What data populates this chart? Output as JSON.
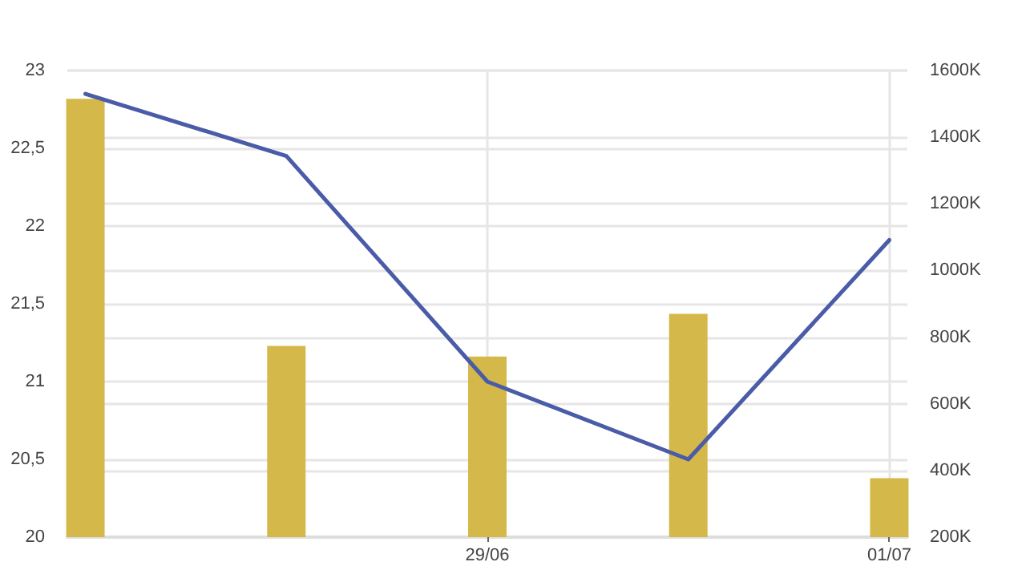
{
  "chart_data": {
    "type": "bar",
    "categories": [
      null,
      null,
      "29/06",
      null,
      "01/07"
    ],
    "series": [
      {
        "axis": "y2",
        "color": "#d4b94a",
        "values": [
          1515,
          774,
          742,
          870,
          377
        ]
      },
      {
        "type": "line",
        "axis": "y",
        "color": "#4a5ba8",
        "values": [
          22.85,
          22.45,
          21.0,
          20.5,
          21.91
        ]
      }
    ],
    "ylim": [
      20,
      23
    ],
    "yticks": [
      20,
      {
        "value": 20.5,
        "label": "20,5"
      },
      21,
      {
        "value": 21.5,
        "label": "21,5"
      },
      22,
      {
        "value": 22.5,
        "label": "22,5"
      },
      23
    ],
    "y2lim": [
      200,
      1600
    ],
    "y2ticks": [
      {
        "value": 200,
        "label": "200K"
      },
      {
        "value": 400,
        "label": "400K"
      },
      {
        "value": 600,
        "label": "600K"
      },
      {
        "value": 800,
        "label": "800K"
      },
      {
        "value": 1000,
        "label": "1000K"
      },
      {
        "value": 1200,
        "label": "1200K"
      },
      {
        "value": 1400,
        "label": "1400K"
      },
      {
        "value": 1600,
        "label": "1600K"
      }
    ],
    "grid": true,
    "marker": "none",
    "line_style": "solid"
  }
}
